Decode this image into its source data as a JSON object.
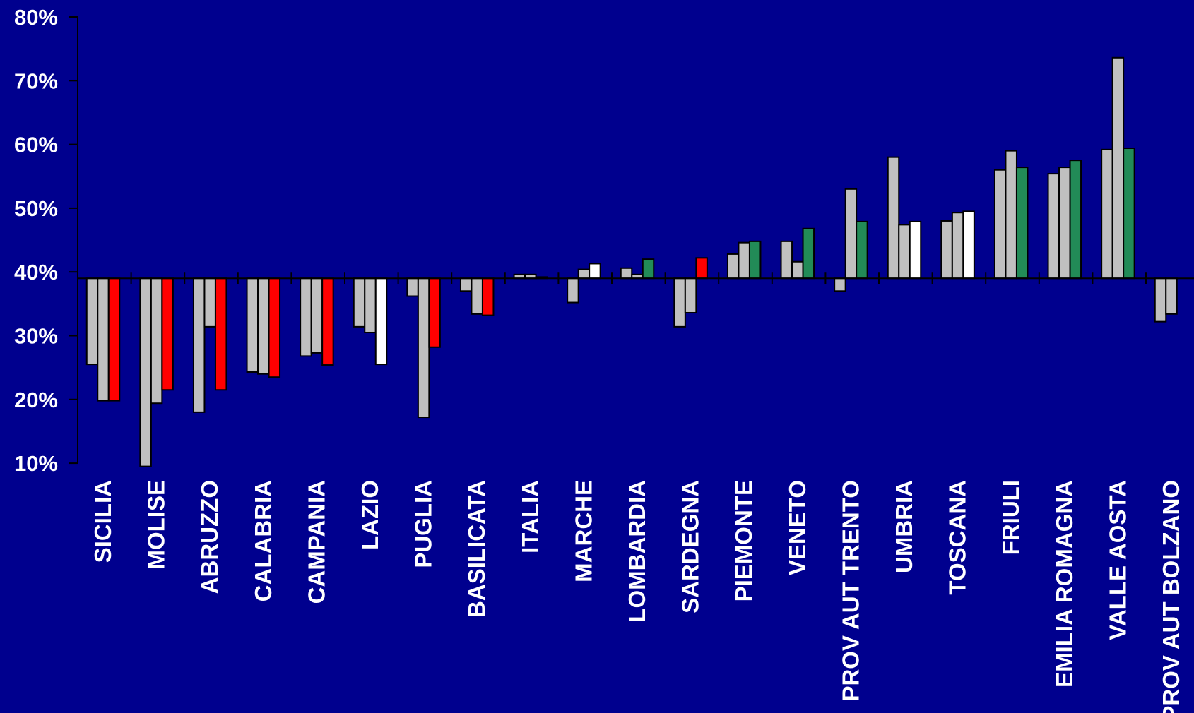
{
  "chart_data": {
    "type": "bar",
    "title": "",
    "xlabel": "",
    "ylabel": "",
    "baseline": 39,
    "ylim": [
      10,
      80
    ],
    "yticks": [
      10,
      20,
      30,
      40,
      50,
      60,
      70,
      80
    ],
    "ytick_labels": [
      "10%",
      "20%",
      "30%",
      "40%",
      "50%",
      "60%",
      "70%",
      "80%"
    ],
    "grid": false,
    "legend": "none",
    "bar_border_color": "#000000",
    "categories": [
      "SICILIA",
      "MOLISE",
      "ABRUZZO",
      "CALABRIA",
      "CAMPANIA",
      "LAZIO",
      "PUGLIA",
      "BASILICATA",
      "ITALIA",
      "MARCHE",
      "LOMBARDIA",
      "SARDEGNA",
      "PIEMONTE",
      "VENETO",
      "PROV AUT TRENTO",
      "UMBRIA",
      "TOSCANA",
      "FRIULI",
      "EMILIA ROMAGNA",
      "VALLE AOSTA",
      "PROV AUT BOLZANO"
    ],
    "series": [
      {
        "color": "#c0c0c0",
        "values": [
          25.5,
          9.5,
          18.0,
          24.3,
          26.8,
          31.4,
          36.2,
          37.0,
          39.6,
          35.2,
          40.6,
          31.4,
          42.8,
          44.8,
          37.0,
          58.0,
          48.0,
          56.0,
          55.4,
          59.2,
          32.2
        ]
      },
      {
        "color": "#c0c0c0",
        "values": [
          19.8,
          19.4,
          31.4,
          24.0,
          27.3,
          30.5,
          17.2,
          33.4,
          39.6,
          40.4,
          39.6,
          33.6,
          44.6,
          41.6,
          53.0,
          47.4,
          49.3,
          59.0,
          56.4,
          73.6,
          33.4
        ]
      },
      {
        "colors": [
          "#ff0000",
          "#ff0000",
          "#ff0000",
          "#ff0000",
          "#ff0000",
          "#ffffff",
          "#ff0000",
          "#ff0000",
          "#c0c0c0",
          "#ffffff",
          "#228b57",
          "#ff0000",
          "#228b57",
          "#228b57",
          "#228b57",
          "#ffffff",
          "#ffffff",
          "#228b57",
          "#228b57",
          "#228b57",
          null
        ],
        "values": [
          19.8,
          21.5,
          21.5,
          23.5,
          25.4,
          25.5,
          28.2,
          33.2,
          39.2,
          41.3,
          42.0,
          42.2,
          44.8,
          46.8,
          47.9,
          47.9,
          49.5,
          56.4,
          57.5,
          59.4,
          null
        ]
      }
    ]
  }
}
